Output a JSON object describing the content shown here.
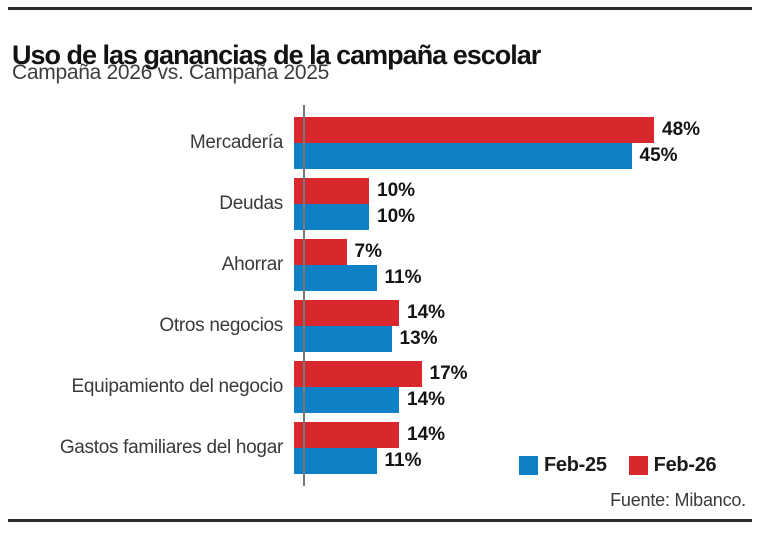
{
  "header": {
    "title": "Uso de las ganancias de la campaña escolar",
    "subtitle": "Campaña 2026 vs. Campaña 2025"
  },
  "chart_data": {
    "type": "bar",
    "orientation": "horizontal",
    "title": "Uso de las ganancias de la campaña escolar",
    "subtitle": "Campaña 2026 vs. Campaña 2025",
    "categories": [
      "Mercadería",
      "Deudas",
      "Ahorrar",
      "Otros negocios",
      "Equipamiento del negocio",
      "Gastos familiares del hogar"
    ],
    "series": [
      {
        "name": "Feb-26",
        "color": "#D9272E",
        "values": [
          48,
          10,
          7,
          14,
          17,
          14
        ]
      },
      {
        "name": "Feb-25",
        "color": "#0F7FC6",
        "values": [
          45,
          10,
          11,
          13,
          14,
          11
        ]
      }
    ],
    "value_suffix": "%",
    "xlim": [
      0,
      50
    ],
    "grid": false,
    "legend_position": "bottom-right",
    "source": "Fuente: Mibanco."
  },
  "legend": {
    "items": [
      {
        "label": "Feb-25",
        "color": "#0F7FC6"
      },
      {
        "label": "Feb-26",
        "color": "#D9272E"
      }
    ]
  },
  "footer": {
    "source": "Fuente: Mibanco."
  },
  "colors": {
    "bar_red": "#D9272E",
    "bar_blue": "#0F7FC6",
    "title": "#121212",
    "subtitle": "#3D3D3D",
    "category_label": "#3A3A3A",
    "value_label": "#141414",
    "rule": "#2E2E2E",
    "axis": "#787878",
    "background": "#FFFFFF"
  }
}
